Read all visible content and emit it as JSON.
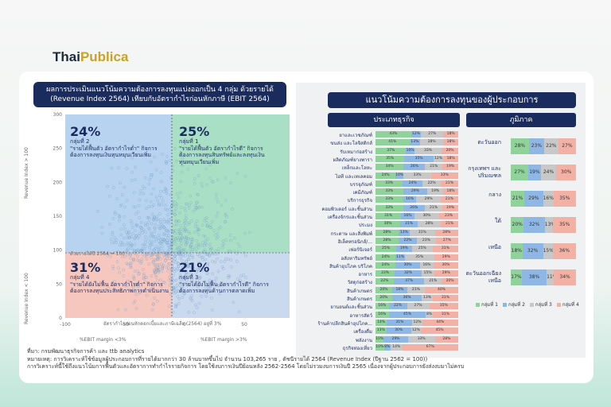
{
  "logo": {
    "part1": "Thai",
    "part2": "Publica"
  },
  "left_title": "ผลการประเมินแนวโน้มความต้องการลงทุนแบ่งออกเป็น 4 กลุ่ม ด้วยรายได้ (Revenue Index 2564) เทียบกับอัตรากำไรก่อนหักภาษี (EBIT 2564)",
  "right_title": "แนวโน้มความต้องการลงทุนของผู้ประกอบการ",
  "colors": {
    "g1": "#8fd39a",
    "g2": "#8fb7e6",
    "g3": "#c8c8c8",
    "g4": "#f3b1a6"
  },
  "quadrants": [
    {
      "pct": "24%",
      "name": "กลุ่มที่ 2",
      "desc": "\"รายได้ฟื้นตัว อัตรากำไรต่ำ\" กิจการต้องการลงทุนเงินทุนหมุนเวียนเพิ่ม"
    },
    {
      "pct": "25%",
      "name": "กลุ่มที่ 1",
      "desc": "\"รายได้ฟื้นตัว อัตรากำไรดี\" กิจการต้องการลงทุนสินทรัพย์และลงทุนเงินทุนหมุนเวียนเพิ่ม"
    },
    {
      "pct": "31%",
      "name": "กลุ่มที่ 4",
      "desc": "\"รายได้ยังไม่ฟื้น อัตรากำไรต่ำ\" กิจการต้องการลงทุนประสิทธิภาพการดำเนินงาน"
    },
    {
      "pct": "21%",
      "name": "กลุ่มที่ 3",
      "desc": "\"รายได้ยังไม่ฟื้น อัตรากำไรดี\" กิจการต้องการลงทุนด้านการตลาดเพิ่ม"
    }
  ],
  "scatter_labels": {
    "revenue_line": "ด้วยรายได้ปี 2564 = 100",
    "ebit_line": "อัตรากำไรก่อนหักดอกเบี้ยและภาษีเฉลี่ย (2564) อยู่ที่ 3%",
    "ylabel_top": "Revenue Index > 100",
    "ylabel_bottom": "Revenue Index < 100",
    "xlabel_left": "%EBIT margin <3%",
    "xlabel_right": "%EBIT margin >3%",
    "yticks": [
      "300",
      "250",
      "200",
      "150",
      "100",
      "50",
      "0"
    ],
    "xticks": [
      "-100",
      "-50",
      "0",
      "50",
      "100"
    ]
  },
  "industry_header": "ประเภทธุรกิจ",
  "region_header": "ภูมิภาค",
  "chart_data": [
    {
      "type": "bar",
      "title": "ประเภทธุรกิจ",
      "categories": [
        "ยาและเวชภัณฑ์",
        "ขนส่ง และโลจิสติกส์",
        "รับเหมาก่อสร้าง",
        "ผลิตภัณฑ์ยางพารา",
        "เหล็กและโลหะ",
        "ไอที และเทเลคอม",
        "บรรจุภัณฑ์",
        "เคมีภัณฑ์",
        "บริการธุรกิจ",
        "คอมพิวเตอร์ และชิ้นส่วน",
        "เครื่องจักรและชิ้นส่วน",
        "ประมง",
        "กระดาษ และสิ่งพิมพ์",
        "อิเล็คทรอนิกส์/...",
        "เฟอร์นิเจอร์",
        "อสังหาริมทรัพย์",
        "สินค้าอุปโภค บริโภค",
        "อาหาร",
        "วัสดุก่อสร้าง",
        "สินค้าเกษตร",
        "สินค้าเกษตร",
        "ยานยนต์และชิ้นส่วน",
        "อาหารสัตว์",
        "ร้านค้าปลีกสินค้าอุปโภค...",
        "เครื่องดื่ม",
        "พลังงาน",
        "ธุรกิจท่องเที่ยว"
      ],
      "series": [
        {
          "name": "กลุ่มที่ 1",
          "values": [
            43,
            41,
            37,
            35,
            34,
            24,
            33,
            33,
            33,
            33,
            31,
            30,
            28,
            28,
            25,
            24,
            24,
            23,
            22,
            20,
            20,
            16,
            16,
            14,
            13,
            10,
            10
          ]
        },
        {
          "name": "กลุ่มที่ 2",
          "values": [
            12,
            13,
            10,
            35,
            26,
            10,
            24,
            29,
            16,
            26,
            16,
            21,
            13,
            22,
            19,
            11,
            30,
            32,
            37,
            18,
            36,
            22,
            45,
            31,
            30,
            29,
            8
          ]
        },
        {
          "name": "กลุ่มที่ 3",
          "values": [
            27,
            28,
            33,
            12,
            21,
            33,
            22,
            19,
            29,
            21,
            30,
            28,
            31,
            23,
            25,
            35,
            16,
            15,
            21,
            21,
            13,
            27,
            8,
            12,
            12,
            33,
            14
          ]
        },
        {
          "name": "กลุ่มที่ 4",
          "values": [
            18,
            18,
            20,
            18,
            19,
            33,
            21,
            18,
            21,
            19,
            23,
            21,
            28,
            27,
            31,
            29,
            30,
            29,
            20,
            40,
            31,
            35,
            31,
            44,
            45,
            28,
            67
          ]
        }
      ]
    },
    {
      "type": "bar",
      "title": "ภูมิภาค",
      "categories": [
        "ตะวันออก",
        "กรุงเทพฯ และปริมณฑล",
        "กลาง",
        "ใต้",
        "เหนือ",
        "ตะวันออกเฉียงเหนือ"
      ],
      "series": [
        {
          "name": "กลุ่มที่ 1",
          "values": [
            28,
            27,
            21,
            20,
            18,
            17
          ]
        },
        {
          "name": "กลุ่มที่ 2",
          "values": [
            23,
            19,
            29,
            32,
            32,
            38
          ]
        },
        {
          "name": "กลุ่มที่ 3",
          "values": [
            22,
            24,
            16,
            13,
            15,
            11
          ]
        },
        {
          "name": "กลุ่มที่ 4",
          "values": [
            27,
            30,
            35,
            35,
            36,
            34
          ]
        }
      ]
    }
  ],
  "legend": [
    "กลุ่มที่ 1",
    "กลุ่มที่ 2",
    "กลุ่มที่ 3",
    "กลุ่มที่ 4"
  ],
  "notes": [
    "ที่มา: กรมพัฒนาธุรกิจการค้า และ ttb analytics",
    "หมายเหตุ: การวิเคราะห์ใช้ข้อมูลผู้ประกอบการที่รายได้มากกว่า 30 ล้านบาทขึ้นไป จำนวน 103,265 ราย , ดัชนีรายได้ 2564 (Revenue Index (ปีฐาน 2562 = 100))",
    "การวิเคราะห์นี้ใช้ถึงแนวโน้มการฟื้นตัวและอัตราการทำกำไรรายกิจการ โดยใช้งบการเงินปีย้อนหลัง 2562-2564 โดยไม่รวมงบการเงินปี 2565 เนื่องจากผู้ประกอบการยังส่งงบมาไม่ครบ"
  ]
}
